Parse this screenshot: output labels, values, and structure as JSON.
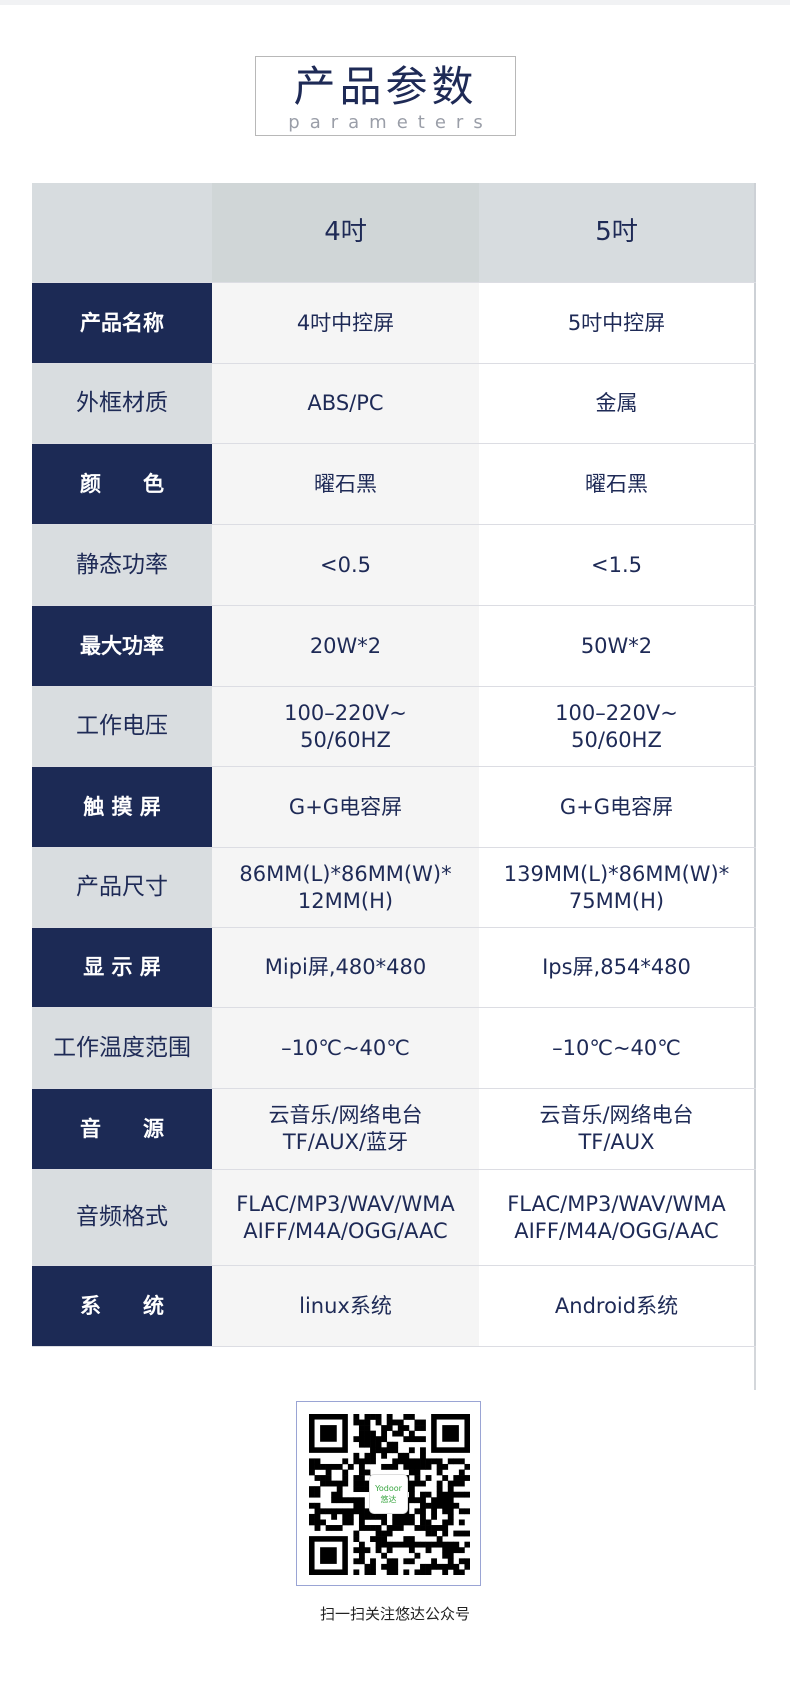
{
  "header": {
    "title": "产品参数",
    "subtitle": "parameters"
  },
  "table": {
    "columns": [
      "",
      "4吋",
      "5吋"
    ],
    "rows": [
      {
        "label": "产品名称",
        "v1": "4吋中控屏",
        "v2": "5吋中控屏",
        "style": "dark"
      },
      {
        "label": "外框材质",
        "v1": "ABS/PC",
        "v2": "金属",
        "style": "light"
      },
      {
        "label": "颜　　色",
        "v1": "曜石黑",
        "v2": "曜石黑",
        "style": "dark"
      },
      {
        "label": "静态功率",
        "v1": "<0.5",
        "v2": "<1.5",
        "style": "light"
      },
      {
        "label": "最大功率",
        "v1": "20W*2",
        "v2": "50W*2",
        "style": "dark"
      },
      {
        "label": "工作电压",
        "v1": "100–220V~\n50/60HZ",
        "v2": "100–220V~\n50/60HZ",
        "style": "light"
      },
      {
        "label": "触 摸 屏",
        "v1": "G+G电容屏",
        "v2": "G+G电容屏",
        "style": "dark"
      },
      {
        "label": "产品尺寸",
        "v1": "86MM(L)*86MM(W)*\n12MM(H)",
        "v2": "139MM(L)*86MM(W)*\n75MM(H)",
        "style": "light"
      },
      {
        "label": "显 示 屏",
        "v1": "Mipi屏,480*480",
        "v2": "Ips屏,854*480",
        "style": "dark"
      },
      {
        "label": "工作温度范围",
        "v1": "–10℃~40℃",
        "v2": "–10℃~40℃",
        "style": "light"
      },
      {
        "label": "音　　源",
        "v1": "云音乐/网络电台\nTF/AUX/蓝牙",
        "v2": "云音乐/网络电台\nTF/AUX",
        "style": "dark"
      },
      {
        "label": "音频格式",
        "v1": "FLAC/MP3/WAV/WMA\nAIFF/M4A/OGG/AAC",
        "v2": "FLAC/MP3/WAV/WMA\nAIFF/M4A/OGG/AAC",
        "style": "light"
      },
      {
        "label": "系　　统",
        "v1": "linux系统",
        "v2": "Android系统",
        "style": "dark"
      }
    ]
  },
  "qr": {
    "logo_text": "Yodoor",
    "logo_cn": "悠达",
    "caption": "扫一扫关注悠达公众号"
  },
  "colors": {
    "navy": "#1c2a55",
    "label_light": "#d9dde0",
    "logo_green": "#3aa642"
  }
}
